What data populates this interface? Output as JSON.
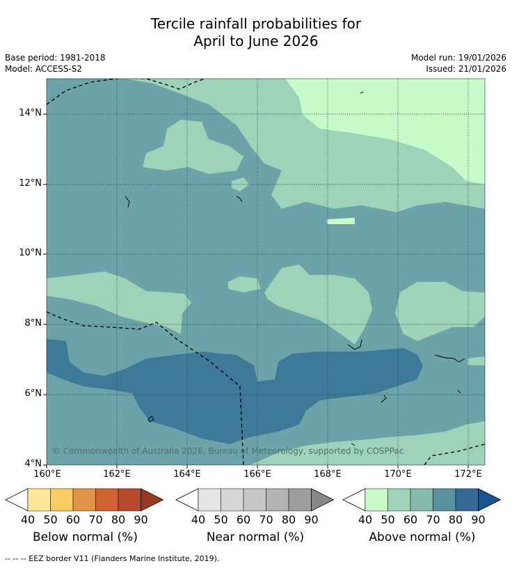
{
  "title_line1": "Tercile rainfall probabilities for",
  "title_line2": "April to June 2026",
  "base_period": "Base period: 1981-2018",
  "model": "Model: ACCESS-S2",
  "model_run": "Model run: 19/01/2026",
  "issued": "Issued: 21/01/2026",
  "copyright": "© Commonwealth of Australia 2026, Bureau of Meteorology, supported by COSPPac",
  "footnote": "-- -- -- EEZ border V11 (Flanders Marine Institute, 2019).",
  "lat_labels": [
    "14°N",
    "12°N",
    "10°N",
    "8°N",
    "6°N",
    "4°N"
  ],
  "lon_labels": [
    "160°E",
    "162°E",
    "164°E",
    "166°E",
    "168°E",
    "170°E",
    "172°E"
  ],
  "legends": [
    {
      "label": "Below normal (%)",
      "ticks": [
        "40",
        "50",
        "60",
        "70",
        "80",
        "90"
      ],
      "colors": [
        "#ffffff",
        "#fee79b",
        "#fdcb63",
        "#e39347",
        "#cf6232",
        "#b44c2b",
        "#983a22"
      ]
    },
    {
      "label": "Near normal (%)",
      "ticks": [
        "40",
        "50",
        "60",
        "70",
        "80",
        "90"
      ],
      "colors": [
        "#ffffff",
        "#e5e5e5",
        "#d6d6d6",
        "#c6c6c6",
        "#b3b3b3",
        "#9e9e9e",
        "#878787"
      ]
    },
    {
      "label": "Above normal (%)",
      "ticks": [
        "40",
        "50",
        "60",
        "70",
        "80",
        "90"
      ],
      "colors": [
        "#ffffff",
        "#c9fbc9",
        "#a0d4b8",
        "#85b9ac",
        "#5a91a1",
        "#356a97",
        "#1a5490"
      ]
    }
  ]
}
